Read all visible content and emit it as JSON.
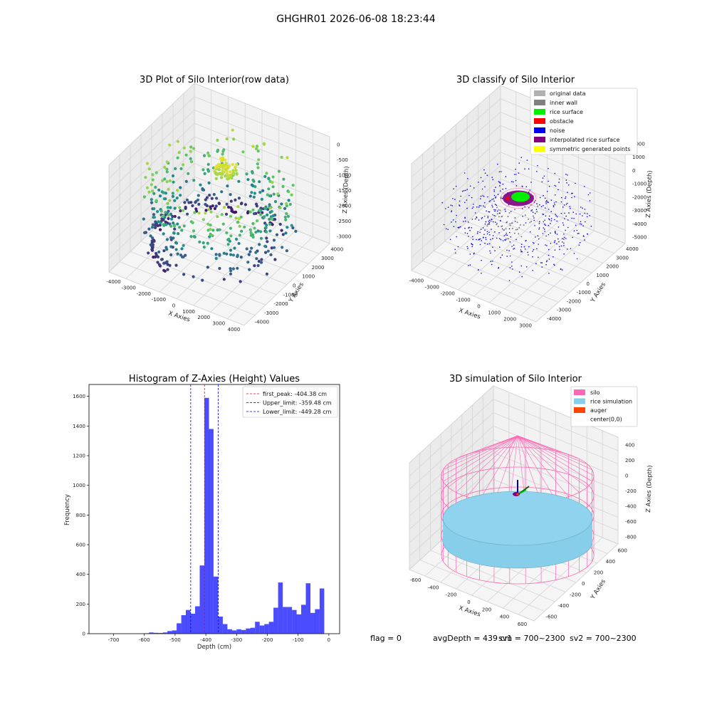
{
  "figure_title": "GHGHR01 2026-06-08 18:23:44",
  "status_line": {
    "flag": "flag = 0",
    "avg_depth": "avgDepth = 439 cm",
    "sv1": "sv1 = 700~2300",
    "sv2": "sv2 = 700~2300"
  },
  "chart_data": [
    {
      "id": "raw",
      "type": "scatter",
      "title": "3D Plot of Silo Interior(row data)",
      "xlabel": "X Axies",
      "ylabel": "Y Axies",
      "zlabel": "Z Axies (Depth)",
      "xticks": [
        "-4000",
        "-3000",
        "-2000",
        "-1000",
        "0",
        "1000",
        "2000",
        "3000",
        "4000"
      ],
      "yticks": [
        "4000",
        "3000",
        "2000",
        "1000",
        "0",
        "-1000",
        "-2000",
        "-3000",
        "-4000"
      ],
      "zticks": [
        "0",
        "-500",
        "-1000",
        "-1500",
        "-2000",
        "-2500",
        "-3000"
      ],
      "xlim": [
        -4200,
        4200
      ],
      "ylim": [
        -4200,
        4200
      ],
      "zlim": [
        -3200,
        0
      ],
      "colormap": [
        "#440154",
        "#3b528b",
        "#21908d",
        "#5dc863",
        "#fde725"
      ]
    },
    {
      "id": "classify",
      "type": "scatter",
      "title": "3D classify of Silo Interior",
      "xlabel": "X Axies",
      "ylabel": "Y Axies",
      "zlabel": "Z Axies (Depth)",
      "xticks": [
        "-4000",
        "-3000",
        "-2000",
        "-1000",
        "0",
        "1000",
        "2000",
        "3000"
      ],
      "yticks": [
        "4000",
        "3000",
        "2000",
        "1000",
        "0",
        "-1000",
        "-2000",
        "-3000",
        "-4000"
      ],
      "zticks": [
        "2000",
        "1000",
        "0",
        "-1000",
        "-2000",
        "-3000",
        "-4000",
        "-5000"
      ],
      "xlim": [
        -4200,
        3600
      ],
      "ylim": [
        -4200,
        4200
      ],
      "zlim": [
        -5500,
        2200
      ],
      "legend": [
        {
          "label": "original data",
          "color": "#b0b0b0"
        },
        {
          "label": "inner wall",
          "color": "#808080"
        },
        {
          "label": "rice surface",
          "color": "#00ee00"
        },
        {
          "label": "obstacle",
          "color": "#ff0000"
        },
        {
          "label": "noise",
          "color": "#0000ee"
        },
        {
          "label": "interpolated rice surface",
          "color": "#800080"
        },
        {
          "label": "symmetric generated points",
          "color": "#ffff00"
        }
      ]
    },
    {
      "id": "hist",
      "type": "bar",
      "title": "Histogram of Z-Axies (Height) Values",
      "xlabel": "Depth (cm)",
      "ylabel": "Frequency",
      "xlim": [
        -780,
        35
      ],
      "ylim": [
        0,
        1680
      ],
      "xticks": [
        -700,
        -600,
        -500,
        -400,
        -300,
        -200,
        -100,
        0
      ],
      "yticks": [
        0,
        200,
        400,
        600,
        800,
        1000,
        1200,
        1400,
        1600
      ],
      "bin_width": 15,
      "bar_color": "#0000ff",
      "bins": [
        {
          "x": -630,
          "v": 2
        },
        {
          "x": -615,
          "v": 1
        },
        {
          "x": -600,
          "v": 3
        },
        {
          "x": -585,
          "v": 8
        },
        {
          "x": -570,
          "v": 6
        },
        {
          "x": -555,
          "v": 5
        },
        {
          "x": -540,
          "v": 8
        },
        {
          "x": -525,
          "v": 18
        },
        {
          "x": -510,
          "v": 22
        },
        {
          "x": -495,
          "v": 70
        },
        {
          "x": -480,
          "v": 125
        },
        {
          "x": -465,
          "v": 160
        },
        {
          "x": -450,
          "v": 135
        },
        {
          "x": -435,
          "v": 185
        },
        {
          "x": -420,
          "v": 460
        },
        {
          "x": -405,
          "v": 1590
        },
        {
          "x": -390,
          "v": 1380
        },
        {
          "x": -375,
          "v": 385
        },
        {
          "x": -360,
          "v": 115
        },
        {
          "x": -345,
          "v": 65
        },
        {
          "x": -330,
          "v": 30
        },
        {
          "x": -315,
          "v": 22
        },
        {
          "x": -300,
          "v": 30
        },
        {
          "x": -285,
          "v": 25
        },
        {
          "x": -270,
          "v": 35
        },
        {
          "x": -255,
          "v": 40
        },
        {
          "x": -240,
          "v": 80
        },
        {
          "x": -225,
          "v": 55
        },
        {
          "x": -210,
          "v": 65
        },
        {
          "x": -195,
          "v": 80
        },
        {
          "x": -180,
          "v": 175
        },
        {
          "x": -165,
          "v": 345
        },
        {
          "x": -150,
          "v": 180
        },
        {
          "x": -135,
          "v": 180
        },
        {
          "x": -120,
          "v": 160
        },
        {
          "x": -105,
          "v": 130
        },
        {
          "x": -90,
          "v": 195
        },
        {
          "x": -75,
          "v": 340
        },
        {
          "x": -60,
          "v": 140
        },
        {
          "x": -45,
          "v": 165
        },
        {
          "x": -30,
          "v": 305
        }
      ],
      "vlines": [
        {
          "label": "first_peak: -404.38 cm",
          "x": -404.38,
          "color": "#ff0000"
        },
        {
          "label": "Upper_limit: -359.48 cm",
          "x": -359.48,
          "color": "#0000ff"
        },
        {
          "label": "Lower_limit: -449.28 cm",
          "x": -449.28,
          "color": "#0000ff"
        }
      ]
    },
    {
      "id": "sim",
      "type": "scatter",
      "title": "3D simulation of Silo Interior",
      "xlabel": "X Axies",
      "ylabel": "Y Axies",
      "zlabel": "Z Axies (Depth)",
      "xticks": [
        "-600",
        "-400",
        "-200",
        "0",
        "200",
        "400",
        "600"
      ],
      "yticks": [
        "600",
        "400",
        "200",
        "0",
        "-200",
        "-400",
        "-600"
      ],
      "zticks": [
        "400",
        "200",
        "0",
        "-200",
        "-400",
        "-600",
        "-800"
      ],
      "xlim": [
        -700,
        700
      ],
      "ylim": [
        -700,
        700
      ],
      "zlim": [
        -900,
        500
      ],
      "legend": [
        {
          "label": "silo",
          "color": "#ff69b4"
        },
        {
          "label": "rice simulation",
          "color": "#87ceeb"
        },
        {
          "label": "auger",
          "color": "#ff4500"
        },
        {
          "label": "center(0,0)",
          "color": "none"
        }
      ]
    }
  ]
}
